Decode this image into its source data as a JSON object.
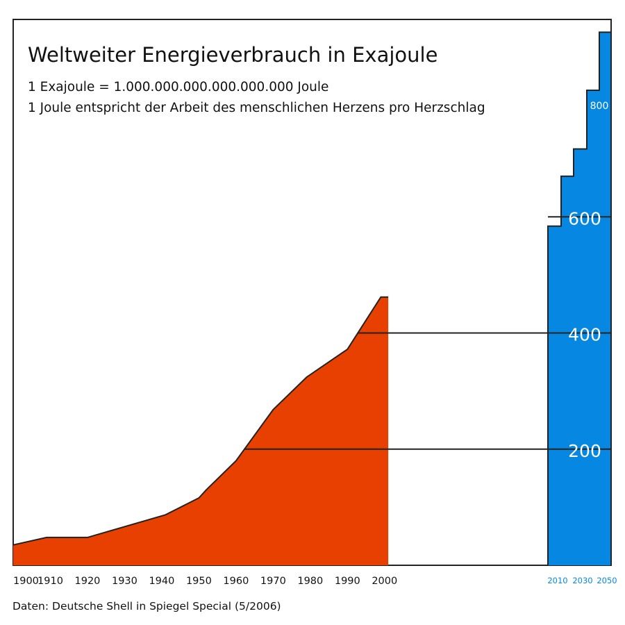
{
  "chart_data": {
    "type": "area",
    "title": "Weltweiter Energieverbrauch in Exajoule",
    "subtitle_lines": [
      "1 Exajoule = 1.000.000.000.000.000.000 Joule",
      "1 Joule entspricht der Arbeit des menschlichen Herzens pro Herzschlag"
    ],
    "source": "Daten: Deutsche Shell in Spiegel Special (5/2006)",
    "xlim": [
      1900,
      2061
    ],
    "ylim": [
      0,
      940
    ],
    "historical": {
      "color": "#e84000",
      "points": [
        [
          1900,
          35
        ],
        [
          1909,
          48
        ],
        [
          1920,
          48
        ],
        [
          1941,
          87
        ],
        [
          1950,
          116
        ],
        [
          1952,
          130
        ],
        [
          1960,
          180
        ],
        [
          1970,
          268
        ],
        [
          1979,
          324
        ],
        [
          1990,
          372
        ],
        [
          1999,
          462
        ],
        [
          2001,
          462
        ]
      ]
    },
    "projection": {
      "color": "#0688e2",
      "steps": [
        {
          "x0": 2001,
          "x1": 2003,
          "value": 584
        },
        {
          "x0": 2003,
          "x1": 2005,
          "value": 670
        },
        {
          "x0": 2005,
          "x1": 2007,
          "value": 717
        },
        {
          "x0": 2007,
          "x1": 2009,
          "value": 818
        },
        {
          "x0": 2009,
          "x1": 2011,
          "value": 918
        }
      ]
    },
    "gridlines": [
      200,
      400,
      600
    ],
    "value_labels": [
      {
        "value": 200,
        "label": "200"
      },
      {
        "value": 400,
        "label": "400"
      },
      {
        "value": 600,
        "label": "600"
      },
      {
        "value": 800,
        "label": "800"
      }
    ],
    "x_ticks_hist": [
      "1900",
      "1910",
      "1920",
      "1930",
      "1940",
      "1950",
      "1960",
      "1970",
      "1980",
      "1990",
      "2000"
    ],
    "x_ticks_proj": [
      "2010",
      "2030",
      "2050"
    ]
  }
}
